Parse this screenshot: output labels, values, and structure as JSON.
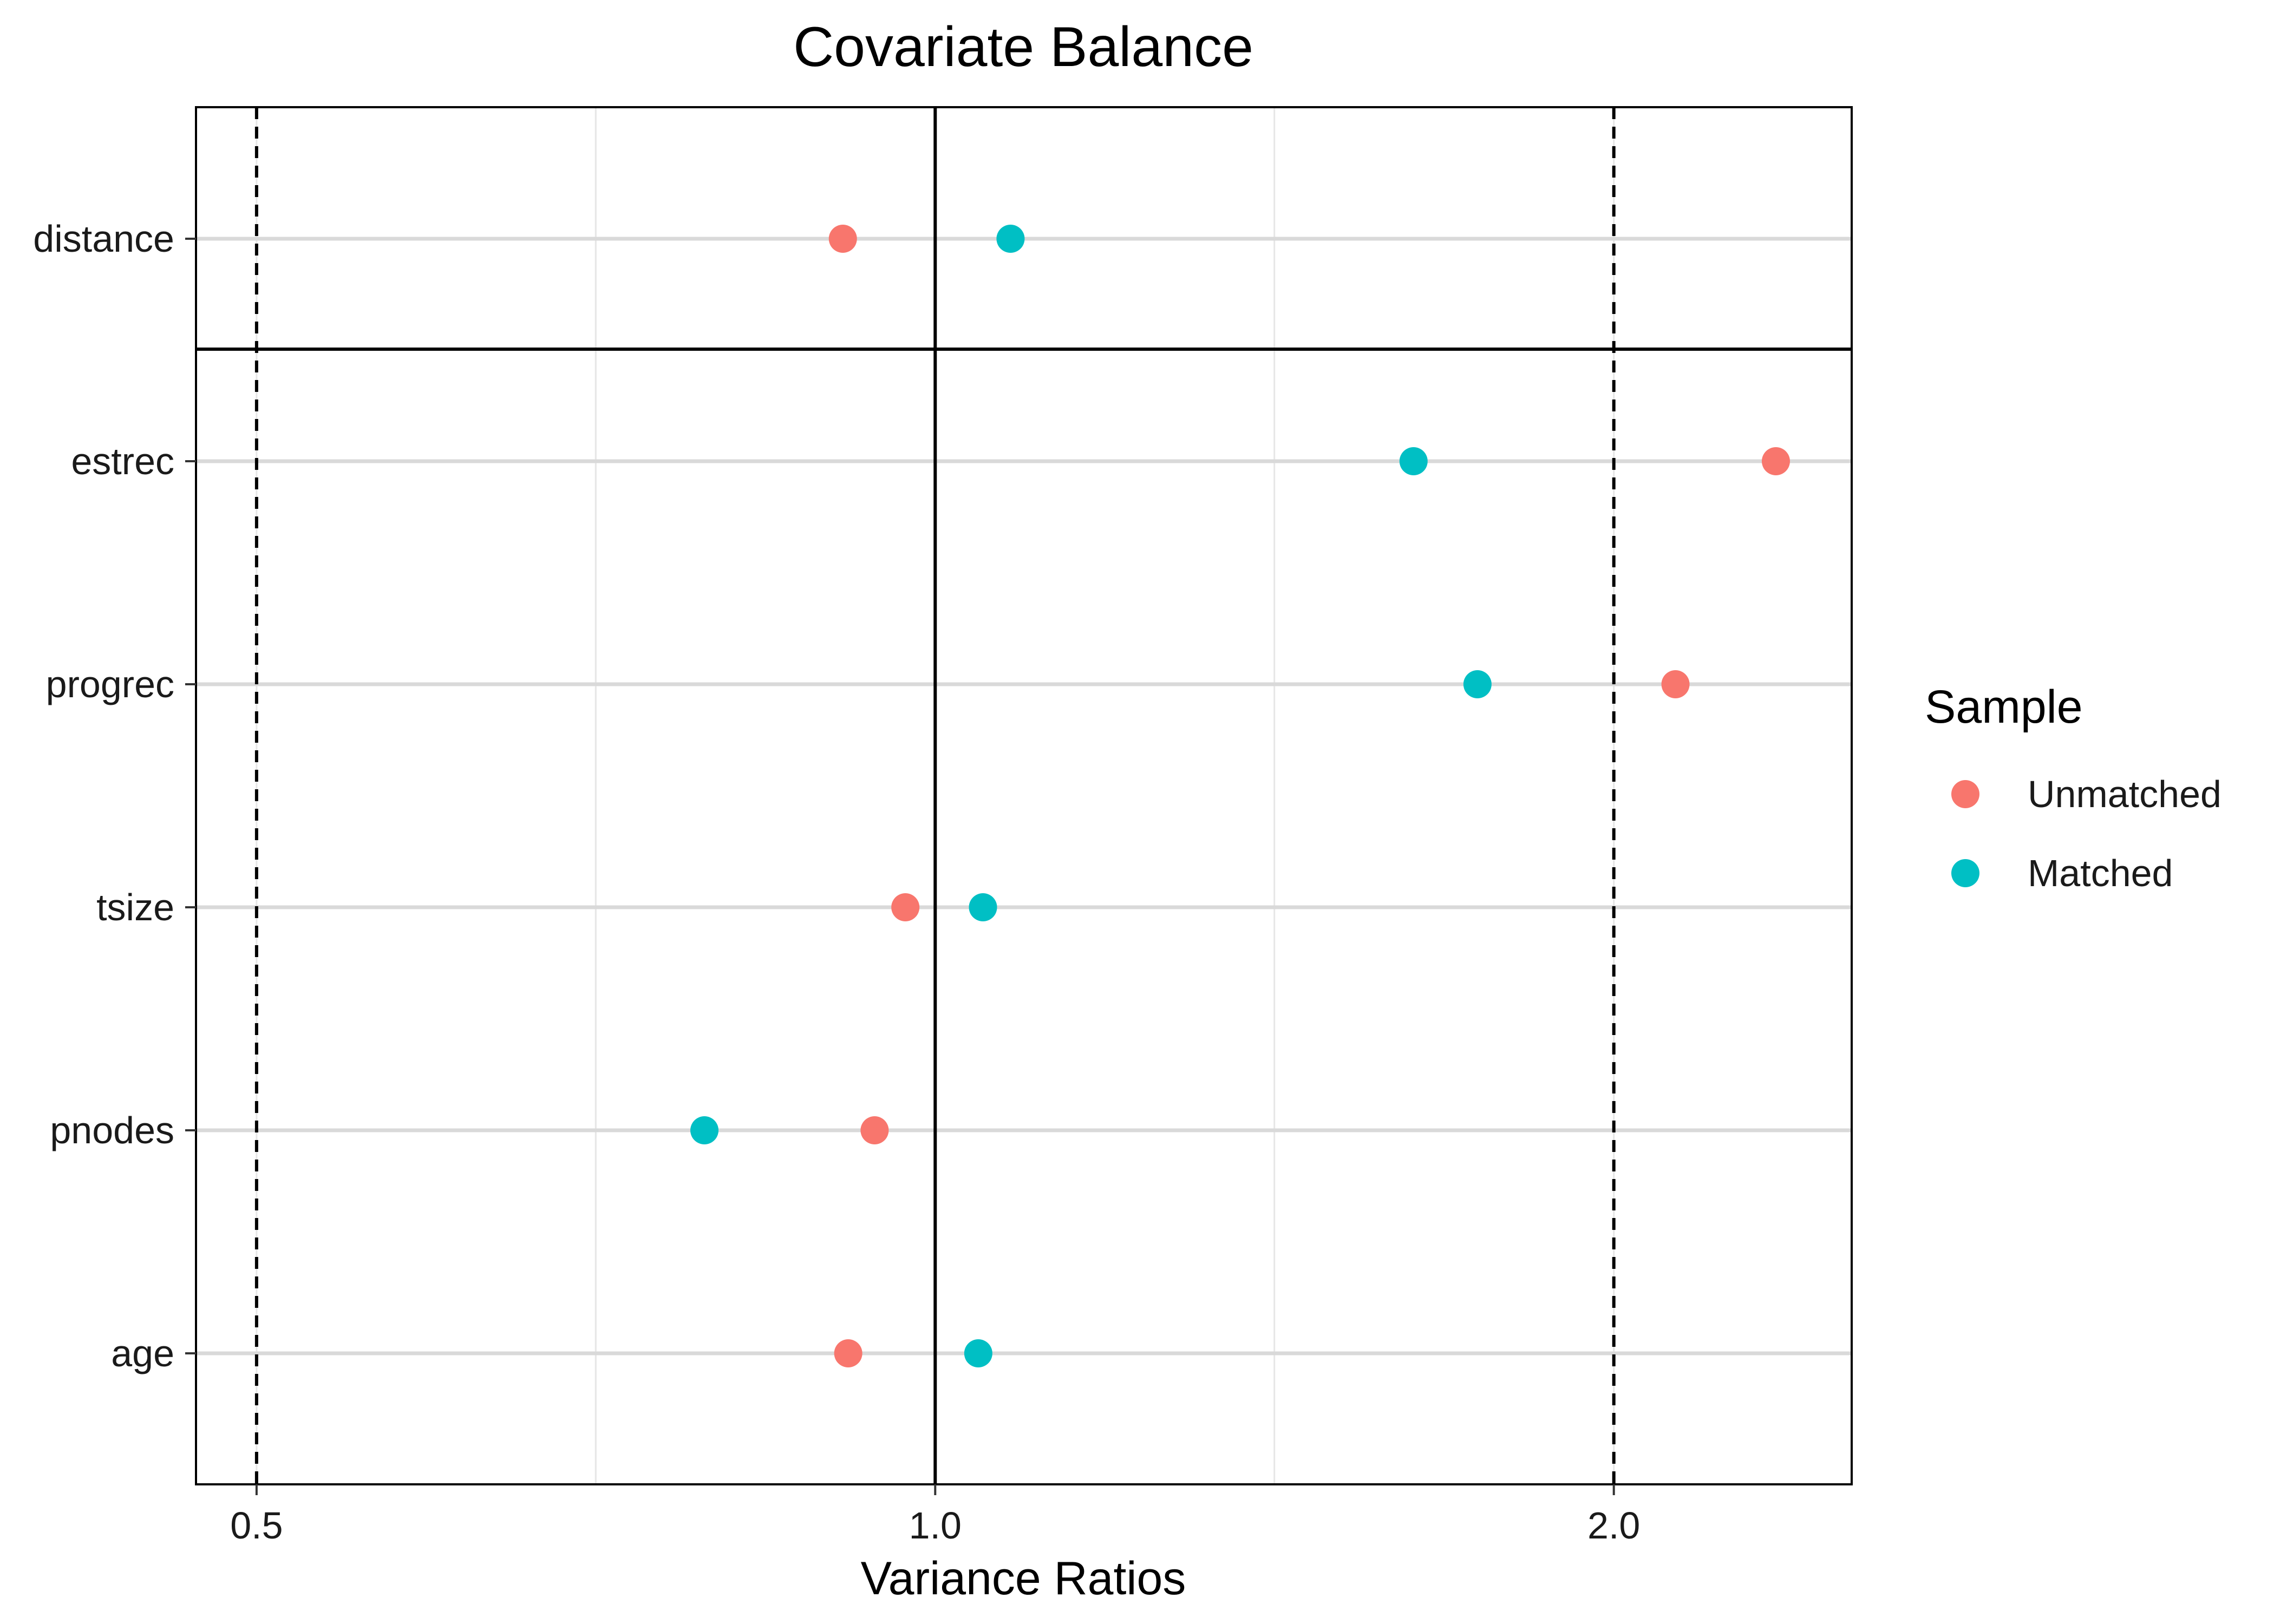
{
  "chart_data": {
    "type": "scatter",
    "title": "Covariate Balance",
    "xlabel": "Variance Ratios",
    "ylabel": "",
    "x_scale": "log",
    "xlim": [
      0.47,
      2.55
    ],
    "x_ticks": [
      {
        "value": 0.5,
        "label": "0.5"
      },
      {
        "value": 1.0,
        "label": "1.0"
      },
      {
        "value": 2.0,
        "label": "2.0"
      }
    ],
    "x_minor_gridlines": [
      0.707,
      1.414
    ],
    "categories": [
      "distance",
      "estrec",
      "progrec",
      "tsize",
      "pnodes",
      "age"
    ],
    "panel_separator_after": "distance",
    "reference_lines": {
      "solid": [
        1.0
      ],
      "dashed": [
        0.5,
        2.0
      ]
    },
    "series": [
      {
        "name": "Unmatched",
        "color": "#F8766D",
        "values": [
          0.91,
          2.36,
          2.13,
          0.97,
          0.94,
          0.915
        ]
      },
      {
        "name": "Matched",
        "color": "#00BFC4",
        "values": [
          1.08,
          1.63,
          1.74,
          1.05,
          0.79,
          1.045
        ]
      }
    ],
    "legend": {
      "title": "Sample",
      "position": "right",
      "entries": [
        "Unmatched",
        "Matched"
      ]
    },
    "grid": true
  }
}
